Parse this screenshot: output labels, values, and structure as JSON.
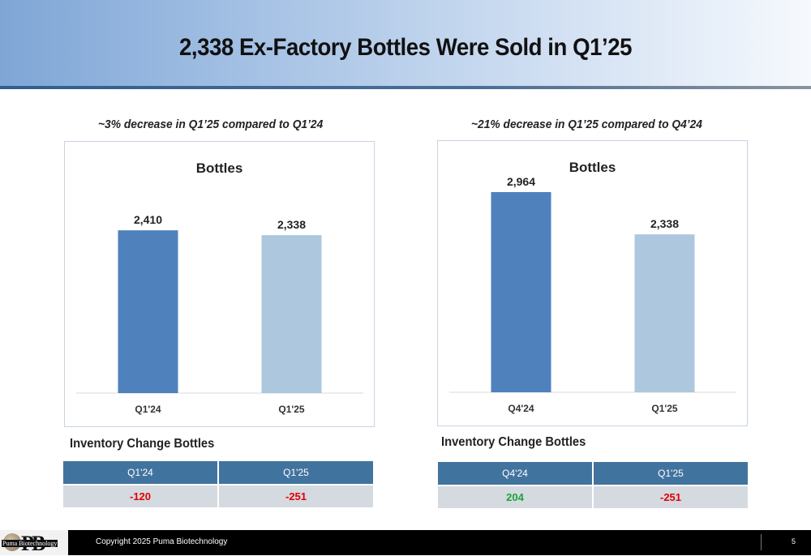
{
  "slide": {
    "title": "2,338 Ex-Factory Bottles Were Sold in Q1’25"
  },
  "left": {
    "subtitle": "~3% decrease in Q1’25 compared to Q1’24",
    "inventory_title": "Inventory Change Bottles",
    "inventory_headers": [
      "Q1'24",
      "Q1'25"
    ],
    "inventory_values": [
      "-120",
      "-251"
    ],
    "inventory_colors": [
      "#e00000",
      "#e00000"
    ]
  },
  "right": {
    "subtitle": "~21% decrease in Q1’25 compared to Q4’24",
    "inventory_title": "Inventory Change Bottles",
    "inventory_headers": [
      "Q4'24",
      "Q1'25"
    ],
    "inventory_values": [
      "204",
      "-251"
    ],
    "inventory_colors": [
      "#1aa33a",
      "#e00000"
    ]
  },
  "chart_data": [
    {
      "type": "bar",
      "title": "Bottles",
      "categories": [
        "Q1'24",
        "Q1'25"
      ],
      "values": [
        2410,
        2338
      ],
      "data_labels": [
        "2,410",
        "2,338"
      ],
      "colors": [
        "#4f81bd",
        "#adc7de"
      ],
      "ylim": [
        0,
        3000
      ],
      "grid": false
    },
    {
      "type": "bar",
      "title": "Bottles",
      "categories": [
        "Q4'24",
        "Q1'25"
      ],
      "values": [
        2964,
        2338
      ],
      "data_labels": [
        "2,964",
        "2,338"
      ],
      "colors": [
        "#4f81bd",
        "#adc7de"
      ],
      "ylim": [
        0,
        3000
      ],
      "grid": false
    }
  ],
  "footer": {
    "copyright": "Copyright 2025 Puma Biotechnology",
    "page_number": "5",
    "logo_text": "PB",
    "logo_name": "Puma Biotechnology"
  }
}
